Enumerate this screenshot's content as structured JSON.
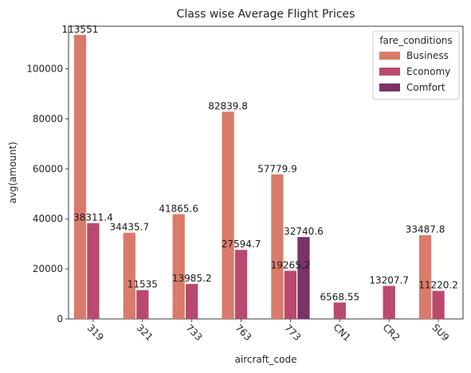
{
  "chart_data": {
    "type": "bar",
    "title": "Class wise Average Flight Prices",
    "xlabel": "aircraft_code",
    "ylabel": "avg(amount)",
    "categories": [
      "319",
      "321",
      "733",
      "763",
      "773",
      "CN1",
      "CR2",
      "SU9"
    ],
    "ylim": [
      0,
      117000
    ],
    "yticks": [
      0,
      20000,
      40000,
      60000,
      80000,
      100000
    ],
    "grid": false,
    "legend": {
      "title": "fare_conditions",
      "placement": "top-right"
    },
    "series": [
      {
        "name": "Business",
        "color": "#d97b6a",
        "values": [
          113551,
          34435.7,
          41865.6,
          82839.8,
          57779.9,
          null,
          null,
          33487.8
        ],
        "labels": [
          "113551",
          "34435.7",
          "41865.6",
          "82839.8",
          "57779.9",
          "",
          "",
          "33487.8"
        ]
      },
      {
        "name": "Economy",
        "color": "#b94a6e",
        "values": [
          38311.4,
          11535,
          13985.2,
          27594.7,
          19265.2,
          6568.55,
          13207.7,
          11220.2
        ],
        "labels": [
          "38311.4",
          "11535",
          "13985.2",
          "27594.7",
          "19265.2",
          "6568.55",
          "13207.7",
          "11220.2"
        ]
      },
      {
        "name": "Comfort",
        "color": "#7a3365",
        "values": [
          null,
          null,
          null,
          null,
          32740.6,
          null,
          null,
          null
        ],
        "labels": [
          "",
          "",
          "",
          "",
          "32740.6",
          "",
          "",
          ""
        ]
      }
    ]
  }
}
